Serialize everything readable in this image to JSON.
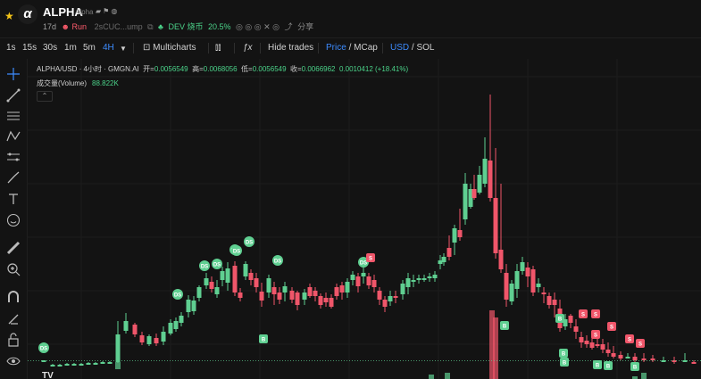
{
  "token": {
    "name": "ALPHA",
    "subname": "Alpha",
    "logo_letter": "α",
    "age": "17d",
    "run_label": "Run",
    "address": "2sCUC...ump",
    "dev_label": "DEV 烧币",
    "dev_percent": "20.5%",
    "share_label": "分享"
  },
  "toolbar": {
    "intervals": [
      "1s",
      "15s",
      "30s",
      "1m",
      "5m",
      "4H"
    ],
    "active_interval": "4H",
    "multicharts_label": "Multicharts",
    "hide_trades_label": "Hide trades",
    "price_label": "Price",
    "mcap_label": "MCap",
    "usd_label": "USD",
    "sol_label": "SOL",
    "slash": "/"
  },
  "legend": {
    "symbol_line": "ALPHA/USD · 4小时 · GMGN.AI",
    "open_label": "开=",
    "open": "0.0056549",
    "high_label": "高=",
    "high": "0.0068056",
    "low_label": "低=",
    "low": "0.0056549",
    "close_label": "收=",
    "close": "0.0066962",
    "change": "0.0010412 (+18.41%)",
    "volume_label": "成交量(Volume)",
    "volume": "88.822K",
    "collapse_glyph": "⌃"
  },
  "tv_logo": "TV",
  "colors": {
    "up": "#5fcf91",
    "down": "#f0566a",
    "background": "#131313",
    "grid": "#1c1c1c",
    "accent": "#3d8cff"
  },
  "chart_data": {
    "type": "candlestick",
    "markers": {
      "dev_sell_label": "DS",
      "buy_label": "B",
      "sell_label": "S"
    }
  }
}
